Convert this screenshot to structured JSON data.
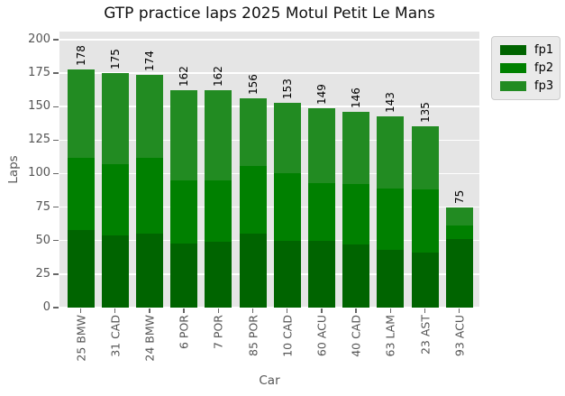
{
  "chart_data": {
    "type": "bar",
    "stacked": true,
    "title": "GTP practice laps 2025 Motul Petit Le Mans",
    "xlabel": "Car",
    "ylabel": "Laps",
    "categories": [
      "25 BMW",
      "31 CAD",
      "24 BMW",
      "6 POR",
      "7 POR",
      "85 POR",
      "10 CAD",
      "60 ACU",
      "40 CAD",
      "63 LAM",
      "23 AST",
      "93 ACU"
    ],
    "series": [
      {
        "name": "fp1",
        "color": "#006400",
        "values": [
          58,
          54,
          55,
          48,
          49,
          55,
          50,
          50,
          47,
          43,
          41,
          51
        ]
      },
      {
        "name": "fp2",
        "color": "#008000",
        "values": [
          54,
          53,
          57,
          47,
          46,
          51,
          50,
          43,
          45,
          46,
          47,
          10
        ]
      },
      {
        "name": "fp3",
        "color": "#228B22",
        "values": [
          66,
          68,
          62,
          67,
          67,
          50,
          53,
          56,
          54,
          54,
          47,
          14
        ]
      }
    ],
    "totals": [
      178,
      175,
      174,
      162,
      162,
      156,
      153,
      149,
      146,
      143,
      135,
      75
    ],
    "yticks": [
      0,
      25,
      50,
      75,
      100,
      125,
      150,
      175,
      200
    ],
    "ylim": [
      0,
      206
    ],
    "grid": true,
    "legend_position": "upper-right-outside",
    "style": {
      "plot_bg": "#e5e5e5",
      "grid_color": "#ffffff",
      "tick_text_color": "#555555",
      "value_label_color": "#000000",
      "title_color": "#111111",
      "legend_bg": "#eaeaea",
      "legend_border": "#cbcbcb",
      "figure_bg": "#ffffff"
    }
  }
}
